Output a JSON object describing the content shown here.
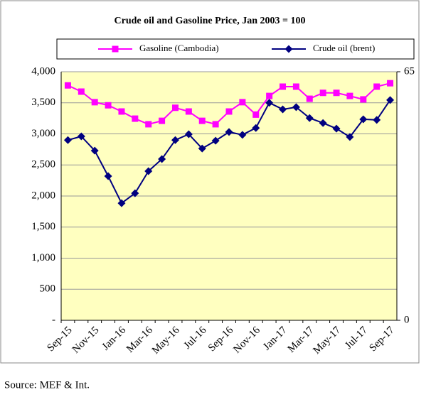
{
  "chart_data": {
    "type": "line",
    "title": "Crude oil and Gasoline Price, Jan 2003 = 100",
    "source": "Source: MEF & Int.",
    "categories": [
      "Sep-15",
      null,
      "Nov-15",
      null,
      "Jan-16",
      null,
      "Mar-16",
      null,
      "May-16",
      null,
      "Jul-16",
      null,
      "Sep-16",
      null,
      "Nov-16",
      null,
      "Jan-17",
      null,
      "Mar-17",
      null,
      "May-17",
      null,
      "Jul-17",
      null,
      "Sep-17"
    ],
    "series": [
      {
        "name": "Gasoline (Cambodia)",
        "color": "#ff00ff",
        "marker": "square",
        "values": [
          3780,
          3680,
          3510,
          3460,
          3360,
          3245,
          3155,
          3210,
          3420,
          3360,
          3210,
          3155,
          3360,
          3510,
          3310,
          3610,
          3760,
          3760,
          3565,
          3660,
          3660,
          3610,
          3555,
          3760,
          3815
        ]
      },
      {
        "name": "Crude oil (brent)",
        "color": "#000080",
        "marker": "diamond",
        "values": [
          2900,
          2960,
          2730,
          2320,
          1885,
          2045,
          2400,
          2595,
          2900,
          2995,
          2765,
          2890,
          3030,
          2985,
          3095,
          3500,
          3395,
          3430,
          3255,
          3175,
          3085,
          2950,
          3235,
          3225,
          3545
        ]
      }
    ],
    "ylim": [
      0,
      4000
    ],
    "yticks": [
      {
        "value": 0,
        "label": "-"
      },
      500,
      {
        "value": 1000,
        "label": "1,000"
      },
      {
        "value": 1500,
        "label": "1,500"
      },
      {
        "value": 2000,
        "label": "2,000"
      },
      {
        "value": 2500,
        "label": "2,500"
      },
      {
        "value": 3000,
        "label": "3,000"
      },
      {
        "value": 3500,
        "label": "3,500"
      },
      {
        "value": 4000,
        "label": "4,000"
      }
    ],
    "y2lim": [
      0,
      65
    ],
    "y2ticks": [
      0,
      65
    ],
    "grid": true,
    "plot_background": "#ffffc0"
  }
}
